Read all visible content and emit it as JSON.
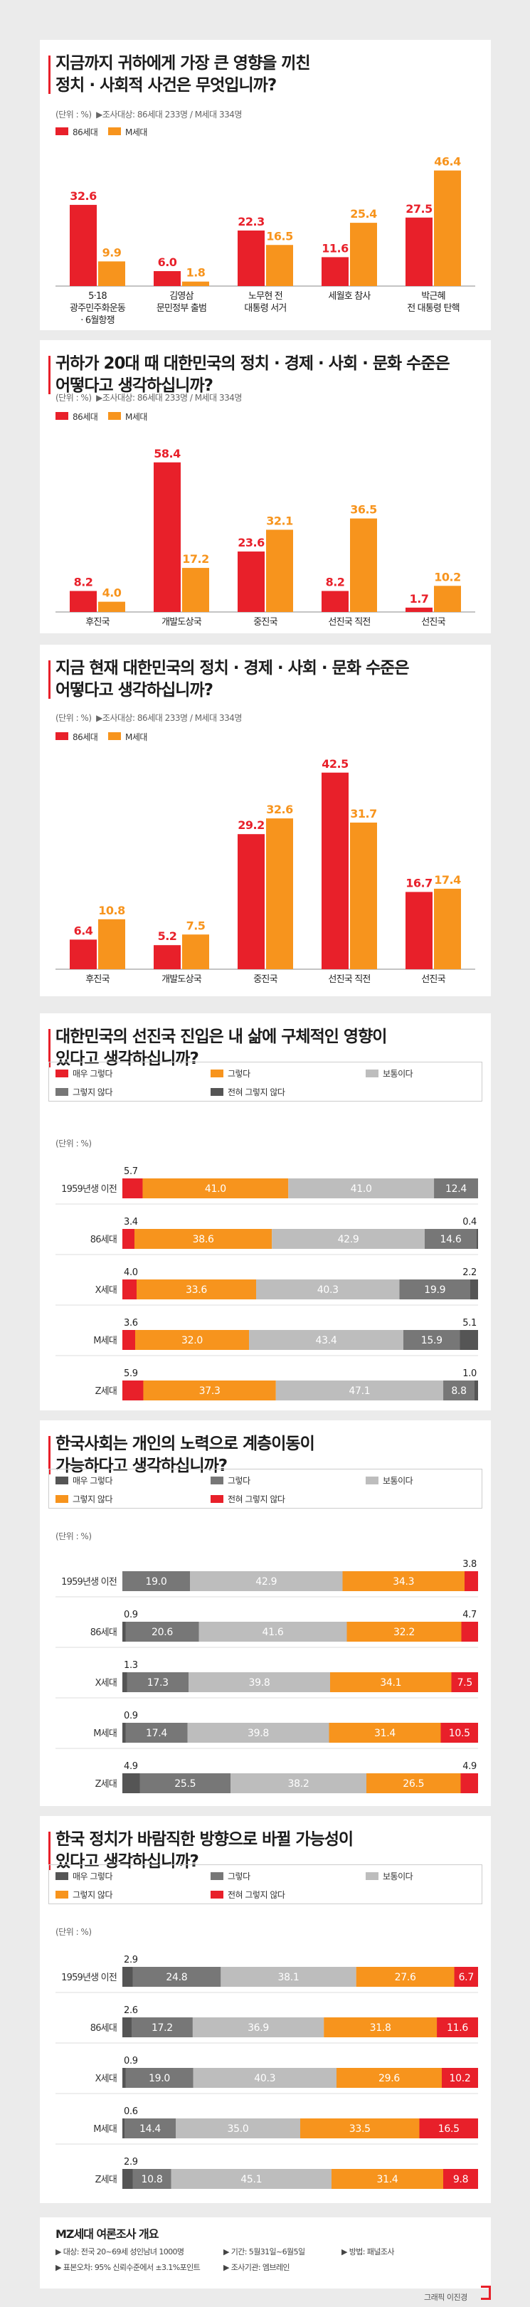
{
  "colors": {
    "red": "#e8202a",
    "orange": "#f7941d",
    "gray": "#bdbdbd",
    "darkgray": "#777777",
    "dark": "#555555"
  },
  "unit_note": "(단위 : %)",
  "sample_note": "▶조사대상: 86세대 233명 / M세대 334명",
  "bar_legend": [
    "86세대",
    "M세대"
  ],
  "chart_data": [
    {
      "type": "bar",
      "title_lines": [
        "지금까지 귀하에게 가장 큰 영향을 끼친",
        "정치 · 사회적 사건은 무엇입니까?"
      ],
      "categories": [
        [
          "5·18",
          "광주민주화운동",
          "· 6월항쟁"
        ],
        [
          "김영삼",
          "문민정부 출범"
        ],
        [
          "노무현 전",
          "대통령 서거"
        ],
        [
          "세월호 참사"
        ],
        [
          "박근혜",
          "전 대통령 탄핵"
        ]
      ],
      "series": [
        {
          "name": "86세대",
          "values": [
            32.6,
            6.0,
            22.3,
            11.6,
            27.5
          ]
        },
        {
          "name": "M세대",
          "values": [
            9.9,
            1.8,
            16.5,
            25.4,
            46.4
          ]
        }
      ],
      "ylim": [
        0,
        50
      ]
    },
    {
      "type": "bar",
      "title_lines": [
        "귀하가 20대 때 대한민국의 정치 · 경제 · 사회 · 문화 수준은",
        "어떻다고 생각하십니까?"
      ],
      "categories": [
        [
          "후진국"
        ],
        [
          "개발도상국"
        ],
        [
          "중진국"
        ],
        [
          "선진국 직전"
        ],
        [
          "선진국"
        ]
      ],
      "series": [
        {
          "name": "86세대",
          "values": [
            8.2,
            58.4,
            23.6,
            8.2,
            1.7
          ]
        },
        {
          "name": "M세대",
          "values": [
            4.0,
            17.2,
            32.1,
            36.5,
            10.2
          ]
        }
      ],
      "ylim": [
        0,
        60
      ]
    },
    {
      "type": "bar",
      "title_lines": [
        "지금 현재 대한민국의 정치 · 경제 · 사회 · 문화 수준은",
        "어떻다고 생각하십니까?"
      ],
      "categories": [
        [
          "후진국"
        ],
        [
          "개발도상국"
        ],
        [
          "중진국"
        ],
        [
          "선진국 직전"
        ],
        [
          "선진국"
        ]
      ],
      "series": [
        {
          "name": "86세대",
          "values": [
            6.4,
            5.2,
            29.2,
            42.5,
            16.7
          ]
        },
        {
          "name": "M세대",
          "values": [
            10.8,
            7.5,
            32.6,
            31.7,
            17.4
          ]
        }
      ],
      "ylim": [
        0,
        45
      ]
    },
    {
      "type": "bar",
      "stacked": true,
      "title_lines": [
        "대한민국의 선진국 진입은 내 삶에 구체적인 영향이",
        "있다고 생각하십니까?"
      ],
      "legend": [
        {
          "name": "매우 그렇다",
          "color": "#e8202a"
        },
        {
          "name": "그렇다",
          "color": "#f7941d"
        },
        {
          "name": "보통이다",
          "color": "#bdbdbd"
        },
        {
          "name": "그렇지 않다",
          "color": "#777777"
        },
        {
          "name": "전혀 그렇지 않다",
          "color": "#555555"
        }
      ],
      "rows": [
        {
          "label": "1959년생 이전",
          "values": [
            5.7,
            41.0,
            41.0,
            12.4,
            null
          ]
        },
        {
          "label": "86세대",
          "values": [
            3.4,
            38.6,
            42.9,
            14.6,
            0.4
          ]
        },
        {
          "label": "X세대",
          "values": [
            4.0,
            33.6,
            40.3,
            19.9,
            2.2
          ]
        },
        {
          "label": "M세대",
          "values": [
            3.6,
            32.0,
            43.4,
            15.9,
            5.1
          ]
        },
        {
          "label": "Z세대",
          "values": [
            5.9,
            37.3,
            47.1,
            8.8,
            1.0
          ]
        }
      ]
    },
    {
      "type": "bar",
      "stacked": true,
      "title_lines": [
        "한국사회는 개인의 노력으로 계층이동이",
        "가능하다고 생각하십니까?"
      ],
      "legend": [
        {
          "name": "매우 그렇다",
          "color": "#555555"
        },
        {
          "name": "그렇다",
          "color": "#777777"
        },
        {
          "name": "보통이다",
          "color": "#bdbdbd"
        },
        {
          "name": "그렇지 않다",
          "color": "#f7941d"
        },
        {
          "name": "전혀 그렇지 않다",
          "color": "#e8202a"
        }
      ],
      "rows": [
        {
          "label": "1959년생 이전",
          "values": [
            null,
            19.0,
            42.9,
            34.3,
            3.8
          ]
        },
        {
          "label": "86세대",
          "values": [
            0.9,
            20.6,
            41.6,
            32.2,
            4.7
          ]
        },
        {
          "label": "X세대",
          "values": [
            1.3,
            17.3,
            39.8,
            34.1,
            7.5
          ]
        },
        {
          "label": "M세대",
          "values": [
            0.9,
            17.4,
            39.8,
            31.4,
            10.5
          ]
        },
        {
          "label": "Z세대",
          "values": [
            4.9,
            25.5,
            38.2,
            26.5,
            4.9
          ]
        }
      ]
    },
    {
      "type": "bar",
      "stacked": true,
      "title_lines": [
        "한국 정치가 바람직한 방향으로 바뀔 가능성이",
        "있다고 생각하십니까?"
      ],
      "legend": [
        {
          "name": "매우 그렇다",
          "color": "#555555"
        },
        {
          "name": "그렇다",
          "color": "#777777"
        },
        {
          "name": "보통이다",
          "color": "#bdbdbd"
        },
        {
          "name": "그렇지 않다",
          "color": "#f7941d"
        },
        {
          "name": "전혀 그렇지 않다",
          "color": "#e8202a"
        }
      ],
      "rows": [
        {
          "label": "1959년생 이전",
          "values": [
            2.9,
            24.8,
            38.1,
            27.6,
            6.7
          ]
        },
        {
          "label": "86세대",
          "values": [
            2.6,
            17.2,
            36.9,
            31.8,
            11.6
          ]
        },
        {
          "label": "X세대",
          "values": [
            0.9,
            19.0,
            40.3,
            29.6,
            10.2
          ]
        },
        {
          "label": "M세대",
          "values": [
            0.6,
            14.4,
            35.0,
            33.5,
            16.5
          ]
        },
        {
          "label": "Z세대",
          "values": [
            2.9,
            10.8,
            45.1,
            31.4,
            9.8
          ]
        }
      ]
    }
  ],
  "footer": {
    "title": "MZ세대 여론조사 개요",
    "lines": [
      "▶ 대상: 전국 20~69세 성인남녀 1000명",
      "▶ 기간: 5월31일~6월5일",
      "▶ 방법: 패널조사",
      "▶ 표본오차: 95% 신뢰수준에서 ±3.1%포인트",
      "▶ 조사기관: 엠브레인"
    ]
  },
  "credit": "그래픽 이진경"
}
